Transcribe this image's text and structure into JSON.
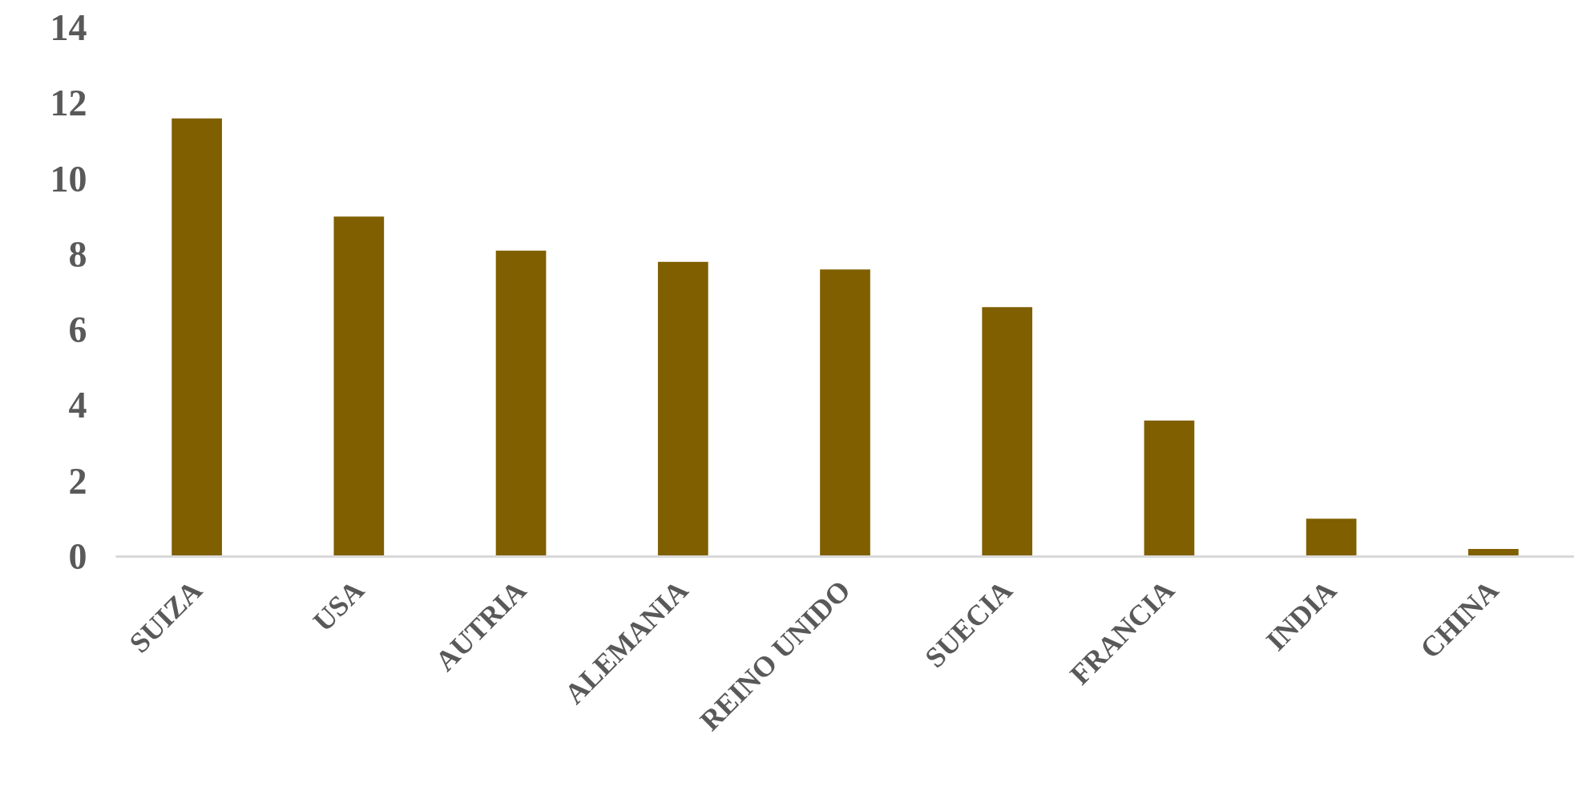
{
  "chart_data": {
    "type": "bar",
    "categories": [
      "SUIZA",
      "USA",
      "AUTRIA",
      "ALEMANIA",
      "REINO UNIDO",
      "SUECIA",
      "FRANCIA",
      "INDIA",
      "CHINA"
    ],
    "values": [
      11.6,
      9.0,
      8.1,
      7.8,
      7.6,
      6.6,
      3.6,
      1.0,
      0.2
    ],
    "color": "#7f5f00",
    "ylim": [
      0,
      14
    ],
    "yticks": [
      0,
      2,
      4,
      6,
      8,
      10,
      12,
      14
    ]
  }
}
